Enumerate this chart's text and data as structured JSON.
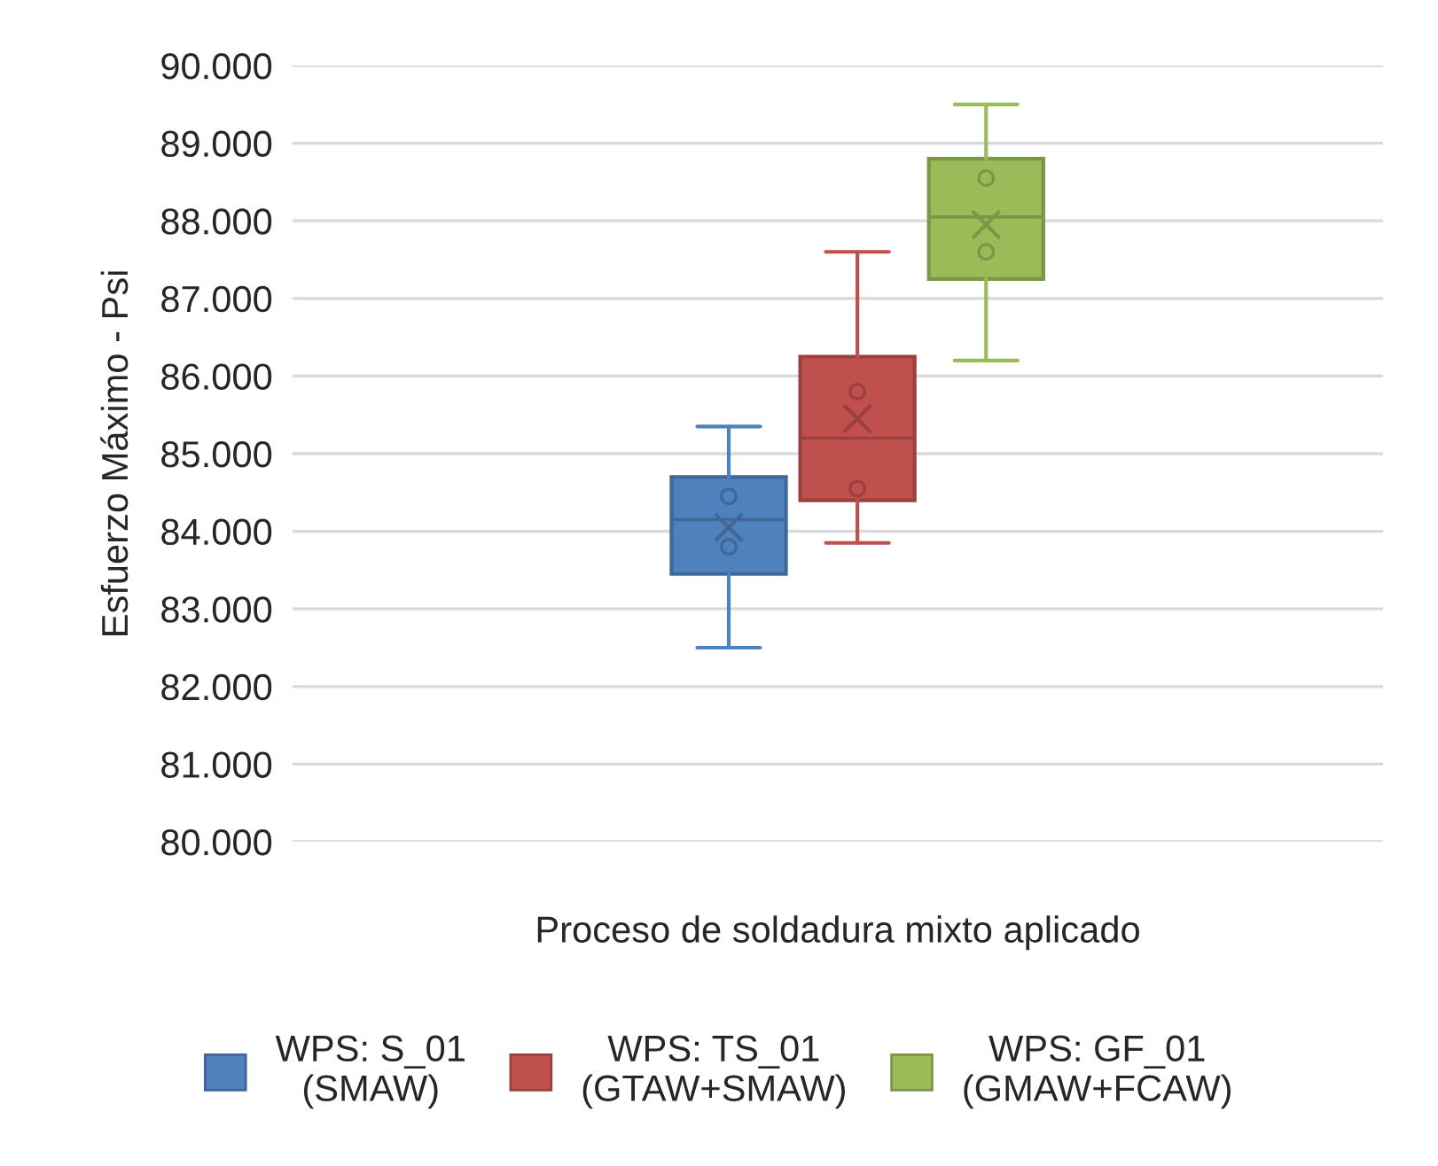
{
  "chart_data": {
    "type": "box",
    "xlabel": "Proceso de soldadura mixto aplicado",
    "ylabel": "Esfuerzo Máximo - Psi",
    "categories": [
      null
    ],
    "series": [
      {
        "name": "WPS: S_01\n(SMAW)",
        "color": "#4f81bd",
        "boxes": [
          {
            "low": 82500,
            "q1": 83450,
            "median": 84150,
            "q3": 84700,
            "high": 85350,
            "mean": 84050,
            "outliers": [
              84450,
              83800
            ]
          }
        ]
      },
      {
        "name": "WPS: TS_01\n(GTAW+SMAW)",
        "color": "#c0504d",
        "boxes": [
          {
            "low": 83850,
            "q1": 84400,
            "median": 85200,
            "q3": 86250,
            "high": 87600,
            "mean": 85450,
            "outliers": [
              85800,
              84550
            ]
          }
        ]
      },
      {
        "name": "WPS: GF_01\n(GMAW+FCAW)",
        "color": "#9bbb59",
        "boxes": [
          {
            "low": 86200,
            "q1": 87250,
            "median": 88050,
            "q3": 88800,
            "high": 89500,
            "mean": 87950,
            "outliers": [
              88550,
              87600
            ]
          }
        ]
      }
    ],
    "ylim": [
      80000,
      90000
    ],
    "yticks": [
      {
        "value": 80000,
        "label": "80.000"
      },
      {
        "value": 81000,
        "label": "81.000"
      },
      {
        "value": 82000,
        "label": "82.000"
      },
      {
        "value": 83000,
        "label": "83.000"
      },
      {
        "value": 84000,
        "label": "84.000"
      },
      {
        "value": 85000,
        "label": "85.000"
      },
      {
        "value": 86000,
        "label": "86.000"
      },
      {
        "value": 87000,
        "label": "87.000"
      },
      {
        "value": 88000,
        "label": "88.000"
      },
      {
        "value": 89000,
        "label": "89.000"
      },
      {
        "value": 90000,
        "label": "90.000"
      }
    ],
    "grid": "y",
    "legend": "bottom",
    "tick_labels": "y"
  }
}
